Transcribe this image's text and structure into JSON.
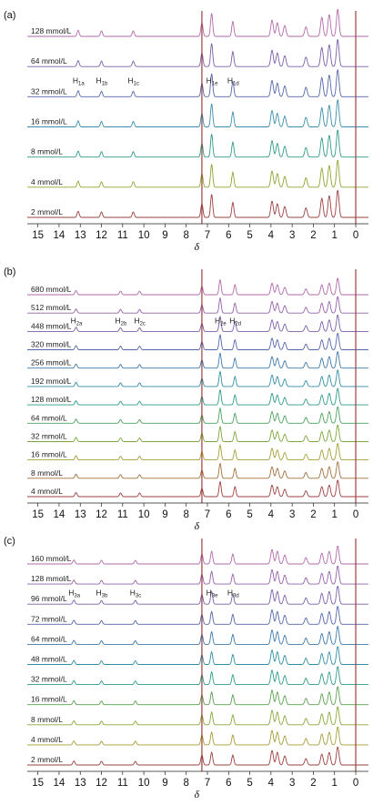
{
  "chart_data": [
    {
      "type": "line",
      "panel_label": "(a)",
      "xlabel": "δ",
      "xlim": [
        15.5,
        -0.6
      ],
      "x_ticks": [
        "15",
        "14",
        "13",
        "12",
        "11",
        "10",
        "9",
        "8",
        "7",
        "6",
        "5",
        "4",
        "3",
        "2",
        "1",
        "0"
      ],
      "series": [
        {
          "name": "128 mmol/L",
          "color": "#b26aa9"
        },
        {
          "name": "64 mmol/L",
          "color": "#7a5fa8"
        },
        {
          "name": "32 mmol/L",
          "color": "#5466a9"
        },
        {
          "name": "16 mmol/L",
          "color": "#3b8eaa"
        },
        {
          "name": "8 mmol/L",
          "color": "#2f9a88"
        },
        {
          "name": "4 mmol/L",
          "color": "#8da431"
        },
        {
          "name": "2 mmol/L",
          "color": "#9c3f3f"
        }
      ],
      "peaks": [
        {
          "x": 13.1,
          "h": 0.22
        },
        {
          "x": 12.0,
          "h": 0.2
        },
        {
          "x": 10.5,
          "h": 0.2
        },
        {
          "x": 7.26,
          "h": 0.5
        },
        {
          "x": 6.8,
          "h": 0.85
        },
        {
          "x": 5.8,
          "h": 0.55
        },
        {
          "x": 3.95,
          "h": 0.6
        },
        {
          "x": 3.7,
          "h": 0.5
        },
        {
          "x": 3.35,
          "h": 0.4
        },
        {
          "x": 2.35,
          "h": 0.35
        },
        {
          "x": 1.6,
          "h": 0.7
        },
        {
          "x": 1.25,
          "h": 0.8
        },
        {
          "x": 0.85,
          "h": 1.0
        }
      ],
      "annotations": [
        {
          "text": "H",
          "sub": "1a",
          "x": 13.1
        },
        {
          "text": "H",
          "sub": "1b",
          "x": 12.0
        },
        {
          "text": "H",
          "sub": "1c",
          "x": 10.5
        },
        {
          "text": "H",
          "sub": "1e",
          "x": 6.8
        },
        {
          "text": "H",
          "sub": "1d",
          "x": 5.8
        }
      ]
    },
    {
      "type": "line",
      "panel_label": "(b)",
      "xlabel": "δ",
      "xlim": [
        15.5,
        -0.6
      ],
      "x_ticks": [
        "15",
        "14",
        "13",
        "12",
        "11",
        "10",
        "9",
        "8",
        "7",
        "6",
        "5",
        "4",
        "3",
        "2",
        "1",
        "0"
      ],
      "series": [
        {
          "name": "680 mmol/L",
          "color": "#b26aa9"
        },
        {
          "name": "512 mmol/L",
          "color": "#9360a8"
        },
        {
          "name": "448 mmol/L",
          "color": "#7a5fa8"
        },
        {
          "name": "320 mmol/L",
          "color": "#5466a9"
        },
        {
          "name": "256 mmol/L",
          "color": "#3b78aa"
        },
        {
          "name": "192 mmol/L",
          "color": "#2f8ea2"
        },
        {
          "name": "128 mmol/L",
          "color": "#2f9a88"
        },
        {
          "name": "64 mmol/L",
          "color": "#4aa05e"
        },
        {
          "name": "32 mmol/L",
          "color": "#7aa63a"
        },
        {
          "name": "16 mmol/L",
          "color": "#a59e35"
        },
        {
          "name": "8 mmol/L",
          "color": "#a0703a"
        },
        {
          "name": "4 mmol/L",
          "color": "#9c3f3f"
        }
      ],
      "peaks": [
        {
          "x": 13.2,
          "h": 0.25
        },
        {
          "x": 11.1,
          "h": 0.22
        },
        {
          "x": 10.2,
          "h": 0.22
        },
        {
          "x": 7.26,
          "h": 0.5
        },
        {
          "x": 6.4,
          "h": 0.9
        },
        {
          "x": 5.7,
          "h": 0.6
        },
        {
          "x": 3.95,
          "h": 0.7
        },
        {
          "x": 3.7,
          "h": 0.6
        },
        {
          "x": 3.35,
          "h": 0.45
        },
        {
          "x": 2.35,
          "h": 0.35
        },
        {
          "x": 1.6,
          "h": 0.6
        },
        {
          "x": 1.25,
          "h": 0.7
        },
        {
          "x": 0.85,
          "h": 1.0
        }
      ],
      "annotations": [
        {
          "text": "H",
          "sub": "2a",
          "x": 13.2
        },
        {
          "text": "H",
          "sub": "2b",
          "x": 11.1
        },
        {
          "text": "H",
          "sub": "2c",
          "x": 10.2
        },
        {
          "text": "H",
          "sub": "2e",
          "x": 6.4
        },
        {
          "text": "H",
          "sub": "2d",
          "x": 5.7
        }
      ]
    },
    {
      "type": "line",
      "panel_label": "(c)",
      "xlabel": "δ",
      "xlim": [
        15.5,
        -0.6
      ],
      "x_ticks": [
        "15",
        "14",
        "13",
        "12",
        "11",
        "10",
        "9",
        "8",
        "7",
        "6",
        "5",
        "4",
        "3",
        "2",
        "1",
        "0"
      ],
      "series": [
        {
          "name": "160 mmol/L",
          "color": "#b26aa9"
        },
        {
          "name": "128 mmol/L",
          "color": "#9360a8"
        },
        {
          "name": "96 mmol/L",
          "color": "#7a5fa8"
        },
        {
          "name": "72 mmol/L",
          "color": "#5466a9"
        },
        {
          "name": "64 mmol/L",
          "color": "#3b78aa"
        },
        {
          "name": "48 mmol/L",
          "color": "#2f8ea2"
        },
        {
          "name": "32 mmol/L",
          "color": "#2f9a88"
        },
        {
          "name": "16 mmol/L",
          "color": "#5aa04f"
        },
        {
          "name": "8 mmol/L",
          "color": "#8aa63a"
        },
        {
          "name": "4 mmol/L",
          "color": "#a59e35"
        },
        {
          "name": "2 mmol/L",
          "color": "#9c3f3f"
        }
      ],
      "peaks": [
        {
          "x": 13.3,
          "h": 0.22
        },
        {
          "x": 12.0,
          "h": 0.2
        },
        {
          "x": 10.4,
          "h": 0.2
        },
        {
          "x": 7.26,
          "h": 0.55
        },
        {
          "x": 6.8,
          "h": 0.7
        },
        {
          "x": 5.8,
          "h": 0.55
        },
        {
          "x": 3.95,
          "h": 0.8
        },
        {
          "x": 3.7,
          "h": 0.7
        },
        {
          "x": 3.35,
          "h": 0.5
        },
        {
          "x": 2.35,
          "h": 0.35
        },
        {
          "x": 1.6,
          "h": 0.6
        },
        {
          "x": 1.25,
          "h": 0.7
        },
        {
          "x": 0.85,
          "h": 1.0
        }
      ],
      "annotations": [
        {
          "text": "H",
          "sub": "3a",
          "x": 13.3
        },
        {
          "text": "H",
          "sub": "3b",
          "x": 12.0
        },
        {
          "text": "H",
          "sub": "3c",
          "x": 10.4
        },
        {
          "text": "H",
          "sub": "3e",
          "x": 6.8
        },
        {
          "text": "H",
          "sub": "3d",
          "x": 5.8
        }
      ]
    }
  ]
}
